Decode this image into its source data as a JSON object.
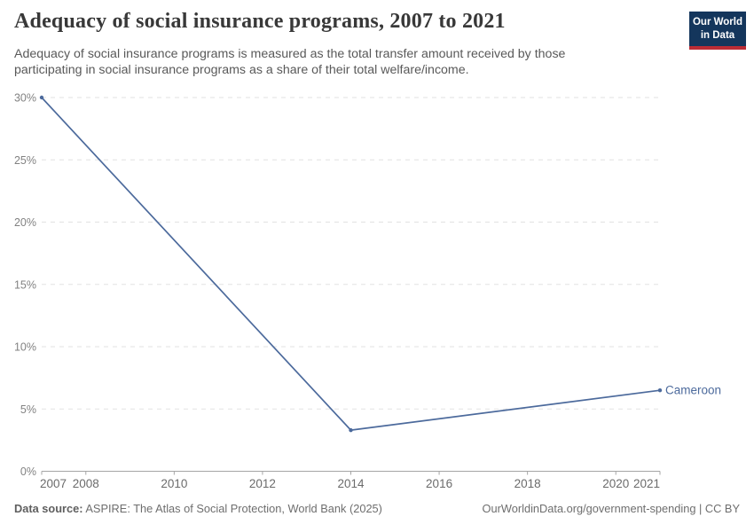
{
  "header": {
    "title": "Adequacy of social insurance programs, 2007 to 2021",
    "subtitle": "Adequacy of social insurance programs is measured as the total transfer amount received by those participating in social insurance programs as a share of their total welfare/income.",
    "logo": {
      "line1": "Our World",
      "line2": "in Data"
    }
  },
  "chart_data": {
    "type": "line",
    "title": "Adequacy of social insurance programs, 2007 to 2021",
    "series": [
      {
        "name": "Cameroon",
        "x": [
          2007,
          2014,
          2021
        ],
        "values": [
          30,
          3.3,
          6.5
        ]
      }
    ],
    "xlim": [
      2007,
      2021
    ],
    "ylim": [
      0,
      30
    ],
    "yticks": [
      0,
      5,
      10,
      15,
      20,
      25,
      30
    ],
    "ytick_suffix": "%",
    "xticks": [
      2007,
      2008,
      2010,
      2012,
      2014,
      2016,
      2018,
      2020,
      2021
    ],
    "grid": "horizontal-dashed",
    "legend_position": "end-of-line-label",
    "entity_label": "Cameroon",
    "colors": {
      "line": "#4C6A9C",
      "grid": "#e2e2e2",
      "axis": "#a5a5a5",
      "y_label": "#828282",
      "x_label": "#6b6b6b"
    }
  },
  "footer": {
    "source_label": "Data source:",
    "source_text": "ASPIRE: The Atlas of Social Protection, World Bank (2025)",
    "credit": "OurWorldinData.org/government-spending | CC BY"
  },
  "brand_colors": {
    "navy": "#14365c",
    "red": "#bb2c35"
  }
}
